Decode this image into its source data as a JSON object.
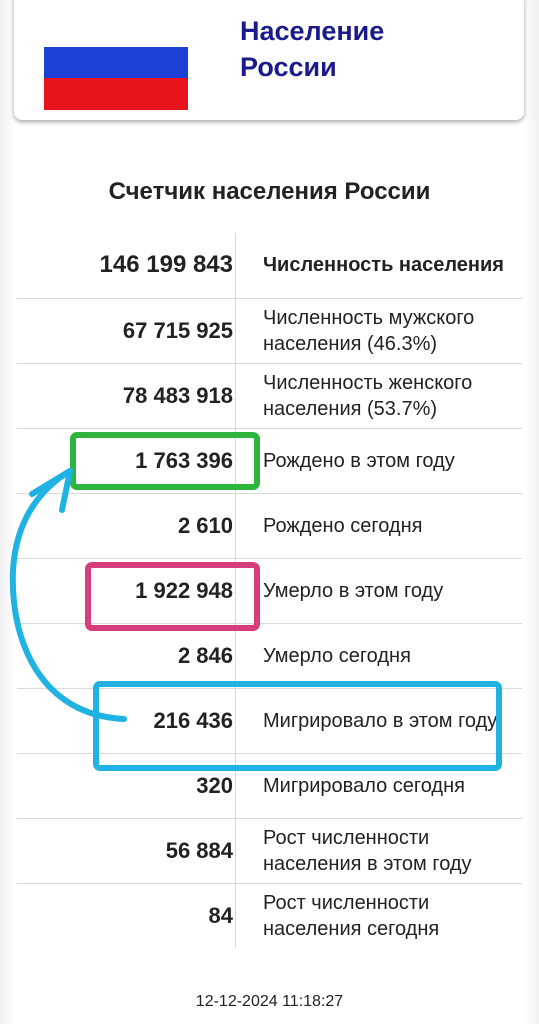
{
  "header": {
    "title_line1": "Население",
    "title_line2": "России",
    "flag_colors": [
      "#ffffff",
      "#1c3fd6",
      "#e8141b"
    ]
  },
  "page_title": "Счетчик населения России",
  "stats": [
    {
      "value": "146 199 843",
      "label": "Численность населения"
    },
    {
      "value": "67 715 925",
      "label": "Численность мужского населения (46.3%)"
    },
    {
      "value": "78 483 918",
      "label": "Численность женского населения (53.7%)"
    },
    {
      "value": "1 763 396",
      "label": "Рождено в этом году"
    },
    {
      "value": "2 610",
      "label": "Рождено сегодня"
    },
    {
      "value": "1 922 948",
      "label": "Умерло в этом году"
    },
    {
      "value": "2 846",
      "label": "Умерло сегодня"
    },
    {
      "value": "216 436",
      "label": "Мигрировало в этом году"
    },
    {
      "value": "320",
      "label": "Мигрировало сегодня"
    },
    {
      "value": "56 884",
      "label": "Рост численности населения в этом году"
    },
    {
      "value": "84",
      "label": "Рост численности населения сегодня"
    }
  ],
  "timestamp": "12-12-2024 11:18:27",
  "annotation_colors": {
    "green": "#2db53d",
    "pink": "#d63d7a",
    "blue": "#1fb2e3"
  }
}
